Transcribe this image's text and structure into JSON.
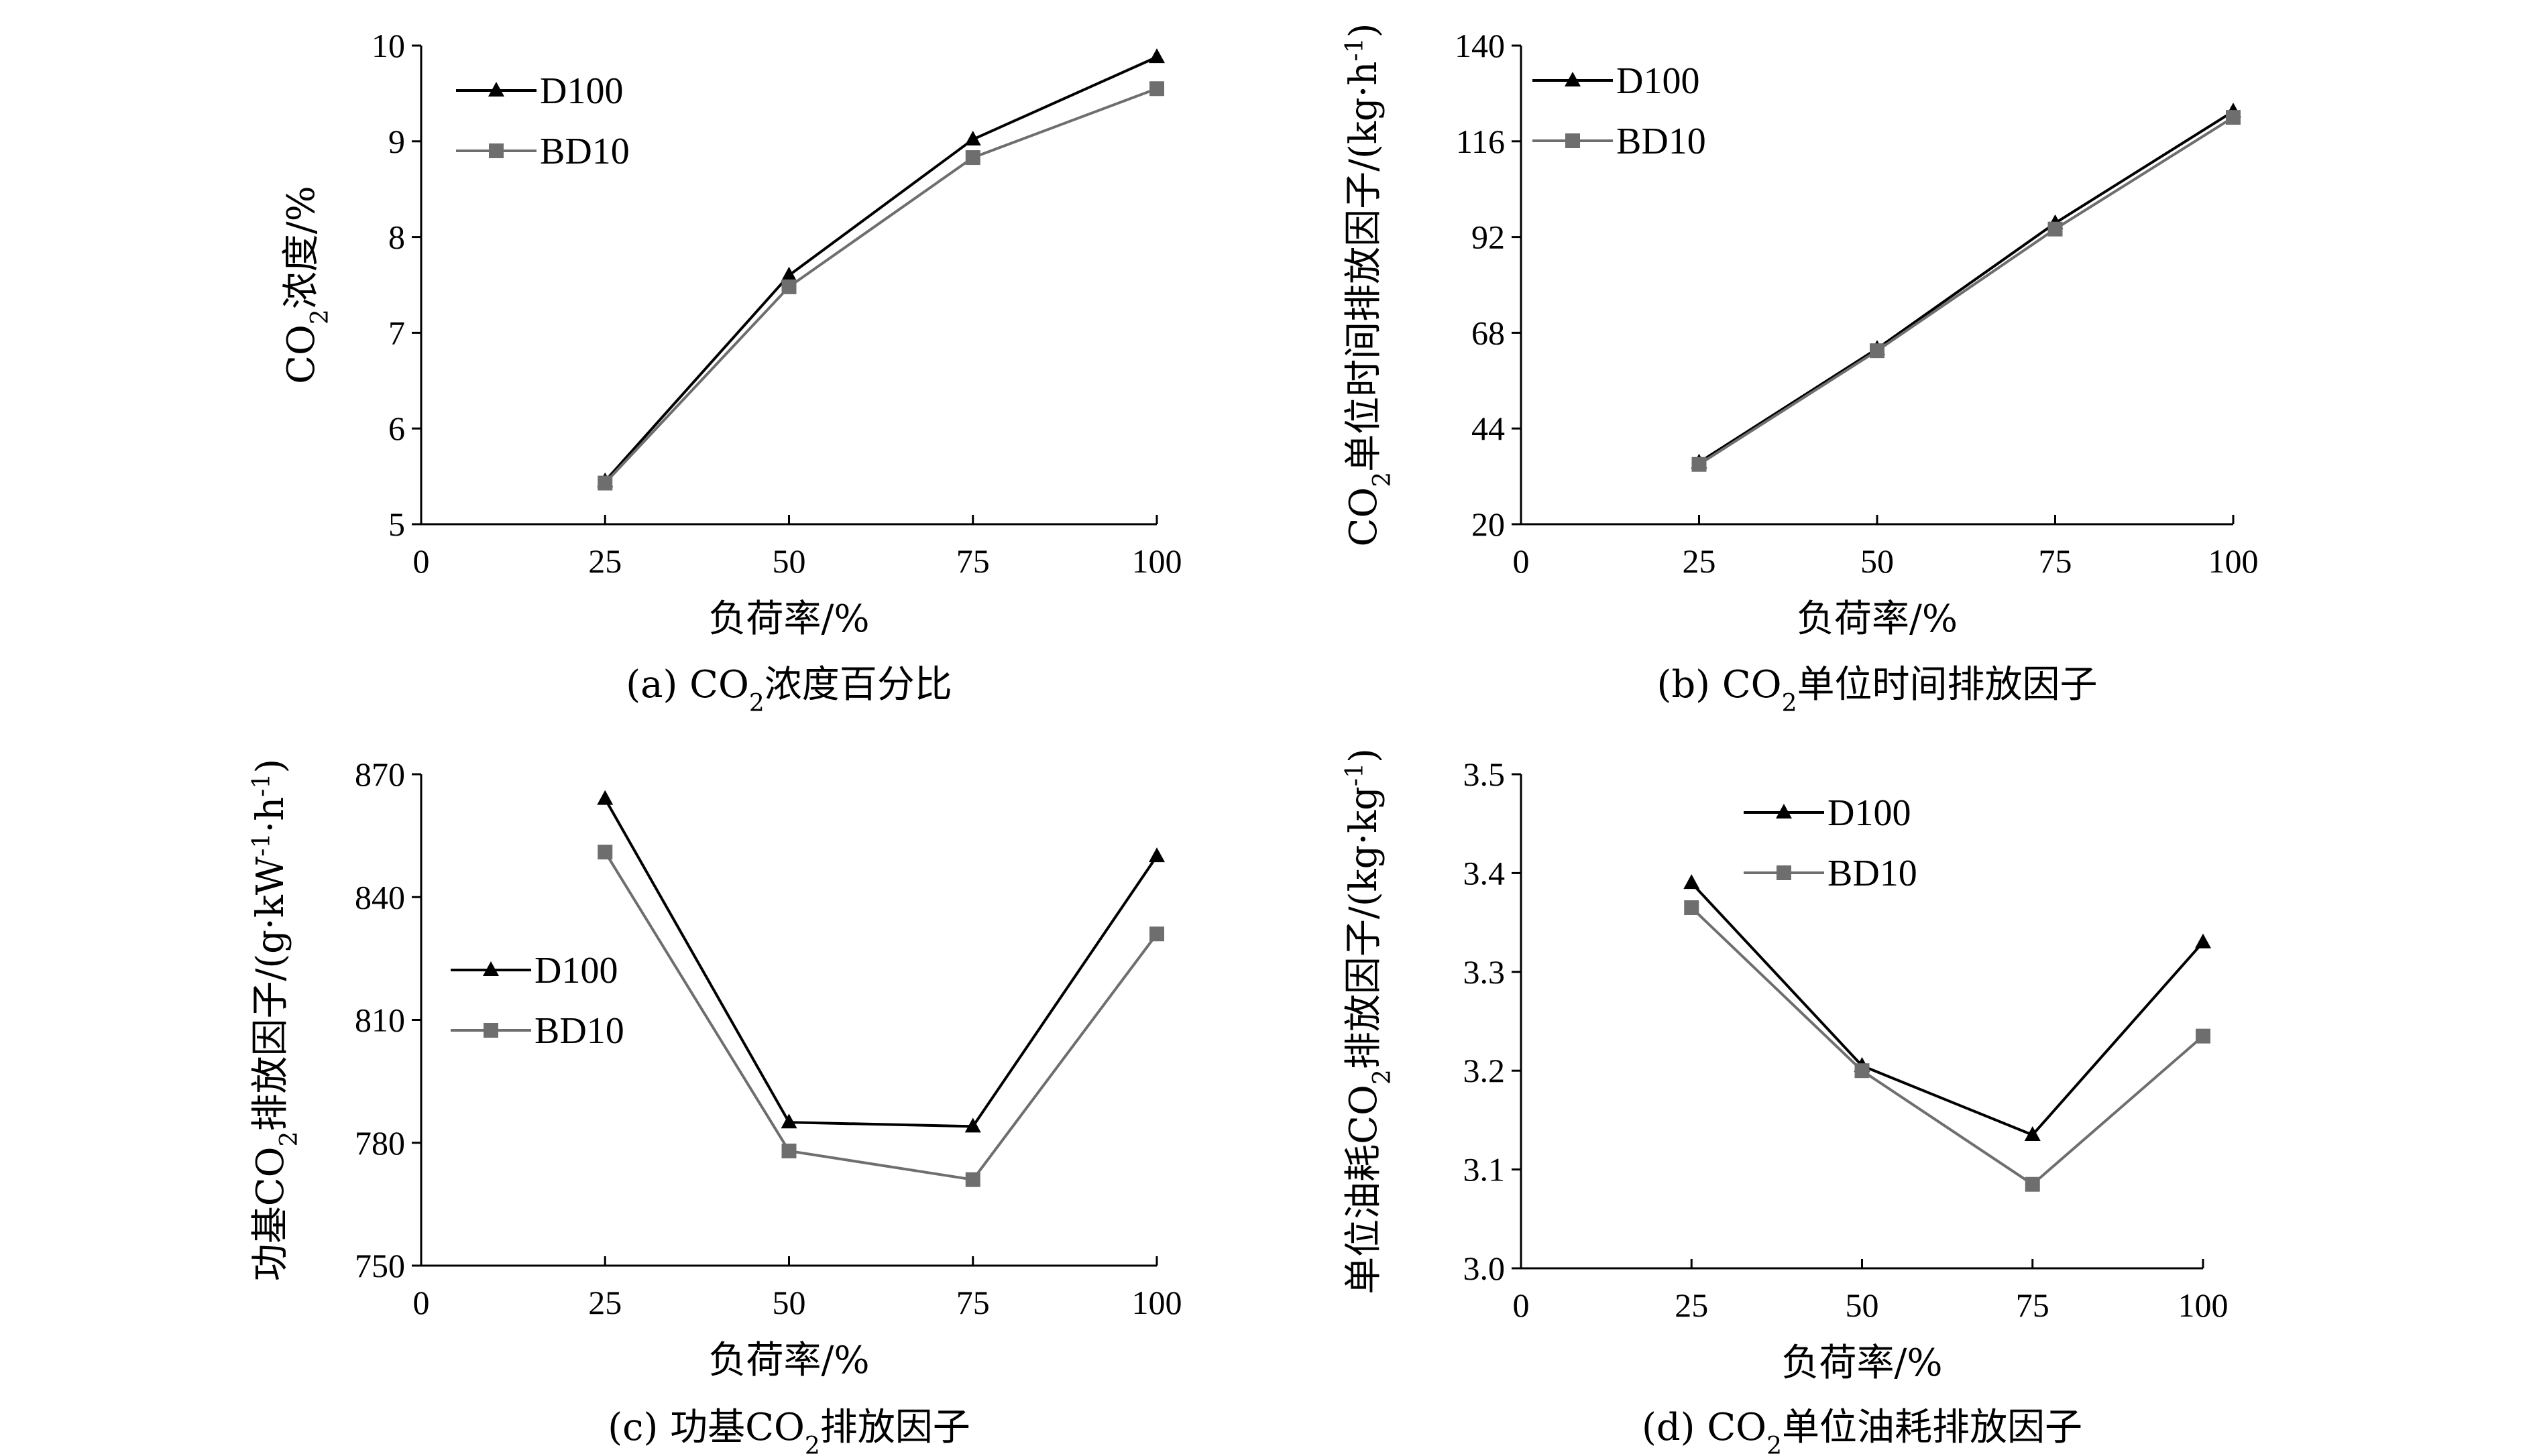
{
  "chart_data": [
    {
      "id": "a",
      "type": "line",
      "caption": [
        "(a) CO",
        "2",
        "浓度百分比"
      ],
      "xlabel": "负荷率/%",
      "ylabel": [
        "CO",
        "2",
        "浓度/%"
      ],
      "xlim": [
        0,
        100
      ],
      "ylim": [
        5,
        10
      ],
      "xticks": [
        0,
        25,
        50,
        75,
        100
      ],
      "yticks": [
        5,
        6,
        7,
        8,
        9,
        10
      ],
      "ytick_labels": [
        "5",
        "6",
        "7",
        "8",
        "9",
        "10"
      ],
      "legend_position": "top-left",
      "x": [
        25,
        50,
        75,
        100
      ],
      "series": [
        {
          "name": "D100",
          "marker": "triangle",
          "color": "#000000",
          "values": [
            5.45,
            7.6,
            9.02,
            9.88
          ]
        },
        {
          "name": "BD10",
          "marker": "square",
          "color": "#6e6e6e",
          "values": [
            5.43,
            7.48,
            8.83,
            9.55
          ]
        }
      ]
    },
    {
      "id": "b",
      "type": "line",
      "caption": [
        "(b) CO",
        "2",
        "单位时间排放因子"
      ],
      "xlabel": "负荷率/%",
      "ylabel": [
        "CO",
        "2",
        "单位时间排放因子/(kg·h",
        "-1",
        ")"
      ],
      "xlim": [
        0,
        100
      ],
      "ylim": [
        20,
        140
      ],
      "xticks": [
        0,
        25,
        50,
        75,
        100
      ],
      "yticks": [
        20,
        44,
        68,
        92,
        116,
        140
      ],
      "ytick_labels": [
        "20",
        "44",
        "68",
        "92",
        "116",
        "140"
      ],
      "legend_position": "top-left",
      "x": [
        25,
        50,
        75,
        100
      ],
      "series": [
        {
          "name": "D100",
          "marker": "triangle",
          "color": "#000000",
          "values": [
            35.5,
            64,
            95.5,
            123.5
          ]
        },
        {
          "name": "BD10",
          "marker": "square",
          "color": "#6e6e6e",
          "values": [
            35,
            63.5,
            94,
            122
          ]
        }
      ]
    },
    {
      "id": "c",
      "type": "line",
      "caption": [
        "(c) 功基CO",
        "2",
        "排放因子"
      ],
      "xlabel": "负荷率/%",
      "ylabel": [
        "功基CO",
        "2",
        "排放因子/(g·kW",
        "-1",
        "·h",
        "-1",
        ")"
      ],
      "xlim": [
        0,
        100
      ],
      "ylim": [
        750,
        870
      ],
      "xticks": [
        0,
        25,
        50,
        75,
        100
      ],
      "yticks": [
        750,
        780,
        810,
        840,
        870
      ],
      "ytick_labels": [
        "750",
        "780",
        "810",
        "840",
        "870"
      ],
      "legend_position": "middle-left",
      "x": [
        25,
        50,
        75,
        100
      ],
      "series": [
        {
          "name": "D100",
          "marker": "triangle",
          "color": "#000000",
          "values": [
            864,
            785,
            784,
            850
          ]
        },
        {
          "name": "BD10",
          "marker": "square",
          "color": "#6e6e6e",
          "values": [
            851,
            778,
            771,
            831
          ]
        }
      ]
    },
    {
      "id": "d",
      "type": "line",
      "caption": [
        "(d) CO",
        "2",
        "单位油耗排放因子"
      ],
      "xlabel": "负荷率/%",
      "ylabel": [
        "单位油耗CO",
        "2",
        "排放因子/(kg·kg",
        "-1",
        ")"
      ],
      "xlim": [
        0,
        100
      ],
      "ylim": [
        3.0,
        3.5
      ],
      "xticks": [
        0,
        25,
        50,
        75,
        100
      ],
      "yticks": [
        3.0,
        3.1,
        3.2,
        3.3,
        3.4,
        3.5
      ],
      "ytick_labels": [
        "3.0",
        "3.1",
        "3.2",
        "3.3",
        "3.4",
        "3.5"
      ],
      "legend_position": "top-center",
      "x": [
        25,
        50,
        75,
        100
      ],
      "series": [
        {
          "name": "D100",
          "marker": "triangle",
          "color": "#000000",
          "values": [
            3.39,
            3.205,
            3.135,
            3.33
          ]
        },
        {
          "name": "BD10",
          "marker": "square",
          "color": "#6e6e6e",
          "values": [
            3.365,
            3.2,
            3.085,
            3.235
          ]
        }
      ]
    }
  ]
}
